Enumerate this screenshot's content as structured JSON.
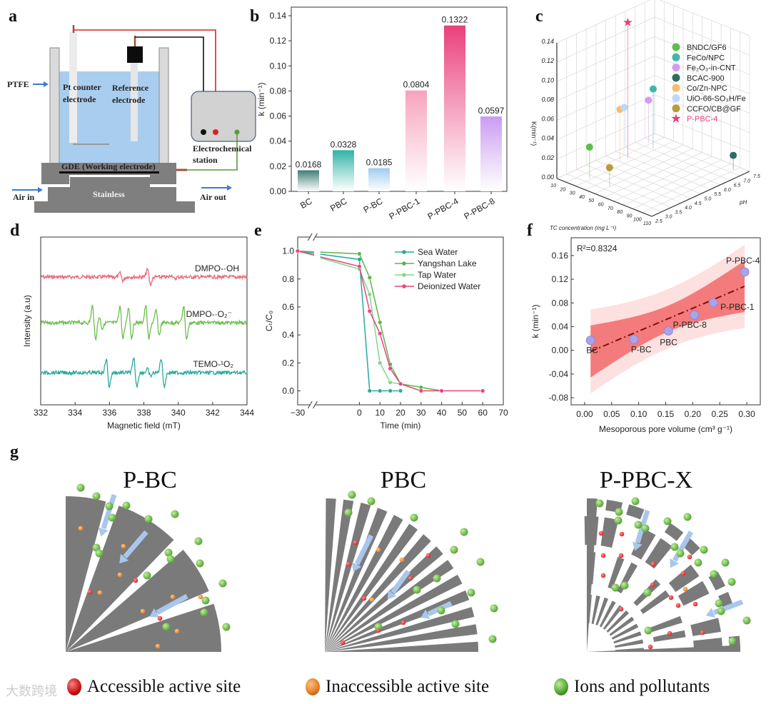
{
  "panel_labels": {
    "a": "a",
    "b": "b",
    "c": "c",
    "d": "d",
    "e": "e",
    "f": "f",
    "g": "g"
  },
  "panel_a": {
    "ptfe": "PTFE",
    "pt_counter_line1": "Pt counter",
    "pt_counter_line2": "electrode",
    "reference_line1": "Reference",
    "reference_line2": "electrode",
    "station_line1": "Electrochemical",
    "station_line2": "station",
    "gde": "GDE (Working electrode)",
    "stainless": "Stainless",
    "air_in": "Air in",
    "air_out": "Air out"
  },
  "colors": {
    "sea": "#2aa7a0",
    "yangshan": "#5cb548",
    "tap": "#7fd98c",
    "deionized": "#e8457e",
    "accessible": "#d81e1e",
    "inaccessible": "#e07a22",
    "ions": "#4f9e32",
    "arrow": "#a9c6ec",
    "solid": "#7a7a7a"
  },
  "chart_data": [
    {
      "id": "b",
      "type": "bar",
      "title": "",
      "xlabel": "",
      "ylabel": "k (min⁻¹)",
      "ylim": [
        0,
        0.14
      ],
      "yticks": [
        "0.00",
        "0.02",
        "0.04",
        "0.06",
        "0.08",
        "0.10",
        "0.12",
        "0.14"
      ],
      "categories": [
        "BC",
        "PBC",
        "P-BC",
        "P-PBC-1",
        "P-PBC-4",
        "P-PBC-8"
      ],
      "values": [
        0.0168,
        0.0328,
        0.0185,
        0.0804,
        0.1322,
        0.0597
      ],
      "data_labels": [
        "0.0168",
        "0.0328",
        "0.0185",
        "0.0804",
        "0.1322",
        "0.0597"
      ],
      "bar_colors": [
        "#3f7d72",
        "#2fb3a6",
        "#9fcbee",
        "#f7a3bd",
        "#ea3f7b",
        "#c99bf2"
      ]
    },
    {
      "id": "c",
      "type": "scatter3d",
      "xlabel": "TC concentration (mg L⁻¹)",
      "ylabel": "pH",
      "zlabel": "K(min⁻¹)",
      "xlim": [
        10,
        110
      ],
      "ylim": [
        2.5,
        7.5
      ],
      "zlim": [
        0,
        0.14
      ],
      "xticks": [
        "10",
        "20",
        "30",
        "40",
        "50",
        "60",
        "70",
        "80",
        "90",
        "100",
        "110"
      ],
      "yticks": [
        "2.5",
        "3.0",
        "3.5",
        "4.0",
        "4.5",
        "5.0",
        "5.5",
        "6.0",
        "6.5",
        "7.0",
        "7.5"
      ],
      "zticks": [
        "0.00",
        "0.02",
        "0.04",
        "0.06",
        "0.08",
        "0.10",
        "0.12",
        "0.14"
      ],
      "legend_position": "top-right",
      "series": [
        {
          "name": "BNDC/GF6",
          "tc": 28,
          "ph": 3.3,
          "k": 0.032,
          "color": "#5cbf4a",
          "marker": "circle"
        },
        {
          "name": "FeCo/NPC",
          "tc": 27,
          "ph": 6.6,
          "k": 0.061,
          "color": "#3fb8a8",
          "marker": "circle"
        },
        {
          "name": "Fe₂O₃-in-CNT",
          "tc": 18,
          "ph": 6.8,
          "k": 0.044,
          "color": "#d59bf2",
          "marker": "circle"
        },
        {
          "name": "BCAC-900",
          "tc": 99,
          "ph": 7.2,
          "k": 0.015,
          "color": "#2d6e62",
          "marker": "circle"
        },
        {
          "name": "Co/Zn-NPC",
          "tc": 25,
          "ph": 5.0,
          "k": 0.054,
          "color": "#f7bd6e",
          "marker": "circle"
        },
        {
          "name": "UiO-66-SO₃H/Fe",
          "tc": 19,
          "ph": 5.5,
          "k": 0.049,
          "color": "#bcd8f7",
          "marker": "circle"
        },
        {
          "name": "CCFO/CB@GF",
          "tc": 49,
          "ph": 3.3,
          "k": 0.019,
          "color": "#b99a3c",
          "marker": "circle"
        },
        {
          "name": "P-PBC-4",
          "tc": 25,
          "ph": 5.4,
          "k": 0.14,
          "color": "#e8417c",
          "marker": "star"
        }
      ]
    },
    {
      "id": "d",
      "type": "line",
      "xlabel": "Magnetic field (mT)",
      "ylabel": "Intensity (a.u)",
      "xlim": [
        332,
        344
      ],
      "xticks": [
        "332",
        "334",
        "336",
        "338",
        "340",
        "342",
        "344"
      ],
      "series": [
        {
          "name": "DMPO-·OH",
          "color": "#e8687a",
          "peaks": [
            [
              336.7,
              0.45
            ],
            [
              338.3,
              0.9
            ],
            [
              339.7,
              0.25
            ]
          ]
        },
        {
          "name": "DMPO-·O₂⁻",
          "color": "#6cbf4e",
          "peaks": [
            [
              335.1,
              1.0
            ],
            [
              335.5,
              0.35
            ],
            [
              336.7,
              1.0
            ],
            [
              337.2,
              0.9
            ],
            [
              338.2,
              1.0
            ],
            [
              338.8,
              0.75
            ],
            [
              340.4,
              1.0
            ]
          ]
        },
        {
          "name": "TEMO-¹O₂",
          "color": "#2ca99c",
          "peaks": [
            [
              335.9,
              0.95
            ],
            [
              337.5,
              0.95
            ],
            [
              338.3,
              0.25
            ],
            [
              339.1,
              1.0
            ]
          ]
        }
      ]
    },
    {
      "id": "e",
      "type": "line",
      "xlabel": "Time (min)",
      "ylabel": "Cₜ/C₀",
      "xlim": [
        -30,
        70
      ],
      "ylim": [
        -0.1,
        1.1
      ],
      "xticks": [
        "-30",
        "0",
        "10",
        "20",
        "30",
        "40",
        "50",
        "60",
        "70"
      ],
      "yticks": [
        "0.0",
        "0.2",
        "0.4",
        "0.6",
        "0.8",
        "1.0"
      ],
      "legend_position": "top-right",
      "series": [
        {
          "name": "Sea Water",
          "color": "#2aa7a0",
          "x": [
            -30,
            0,
            5,
            10,
            15,
            20
          ],
          "y": [
            1.0,
            0.94,
            0.0,
            0.0,
            0.0,
            0.0
          ]
        },
        {
          "name": "Yangshan Lake",
          "color": "#5cb548",
          "x": [
            -30,
            0,
            5,
            10,
            15,
            20,
            30,
            40
          ],
          "y": [
            1.0,
            0.98,
            0.81,
            0.49,
            0.19,
            0.05,
            0.025,
            0.0
          ]
        },
        {
          "name": "Tap Water",
          "color": "#7fd98c",
          "x": [
            -30,
            0,
            5,
            10,
            15,
            20,
            30
          ],
          "y": [
            1.0,
            0.87,
            0.69,
            0.2,
            0.06,
            0.05,
            0.0
          ]
        },
        {
          "name": "Deionized Water",
          "color": "#e8457e",
          "x": [
            -30,
            0,
            5,
            10,
            15,
            20,
            30,
            40,
            60
          ],
          "y": [
            1.0,
            0.89,
            0.57,
            0.41,
            0.16,
            0.05,
            0.0,
            0.0,
            0.0
          ]
        }
      ]
    },
    {
      "id": "f",
      "type": "scatter",
      "xlabel": "Mesoporous pore volume (cm³ g⁻¹)",
      "ylabel": "k (min⁻¹)",
      "xlim": [
        -0.025,
        0.325
      ],
      "ylim": [
        -0.092,
        0.19
      ],
      "xticks": [
        "0.00",
        "0.05",
        "0.10",
        "0.15",
        "0.20",
        "0.25",
        "0.30"
      ],
      "yticks": [
        "-0.08",
        "-0.04",
        "0.00",
        "0.04",
        "0.08",
        "0.12",
        "0.16"
      ],
      "annotation": "R²=0.8324",
      "points": [
        {
          "label": "BC",
          "x": 0.011,
          "y": 0.0168
        },
        {
          "label": "P-BC",
          "x": 0.091,
          "y": 0.0185
        },
        {
          "label": "PBC",
          "x": 0.155,
          "y": 0.0328
        },
        {
          "label": "P-PBC-8",
          "x": 0.203,
          "y": 0.0597
        },
        {
          "label": "P-PBC-1",
          "x": 0.238,
          "y": 0.0804
        },
        {
          "label": "P-PBC-4",
          "x": 0.296,
          "y": 0.1322
        }
      ],
      "fit": {
        "x_range": [
          0.011,
          0.296
        ],
        "slope": 0.386,
        "intercept": -0.0062,
        "mean_x": 0.155,
        "confidence_halfwidth": {
          "center": 0.022,
          "edge": 0.044
        },
        "prediction_halfwidth": {
          "center": 0.05,
          "edge": 0.071
        }
      }
    }
  ],
  "panel_g": {
    "titles": [
      "P-BC",
      "PBC",
      "P-PBC-X"
    ],
    "legend": [
      "Accessible active site",
      "Inaccessible active site",
      "Ions and pollutants"
    ],
    "watermark": "大数跨境"
  }
}
